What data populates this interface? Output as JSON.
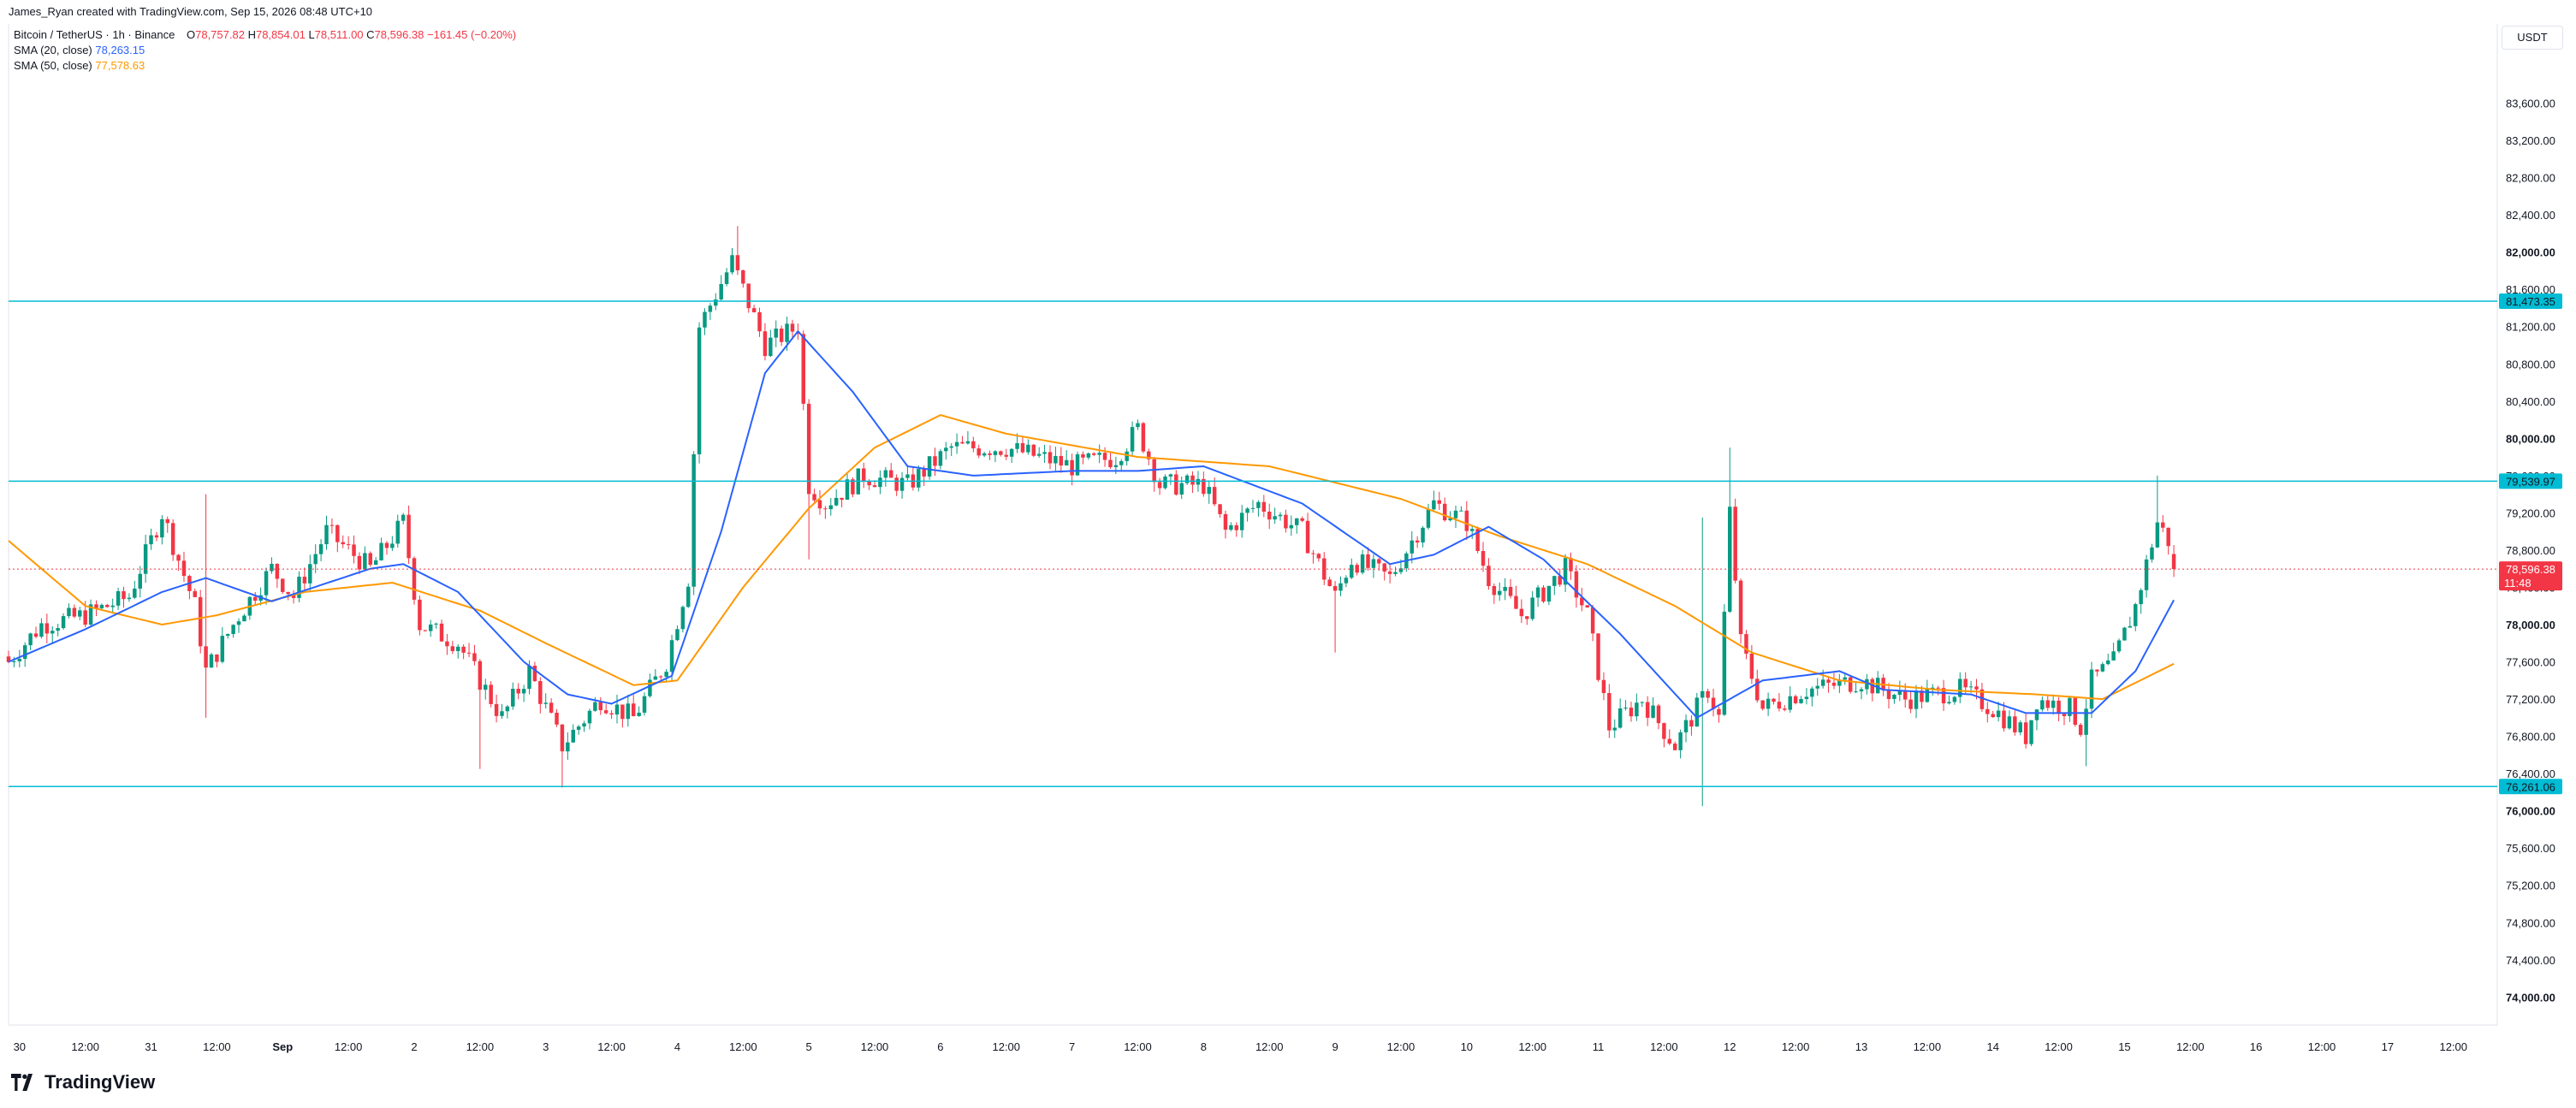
{
  "attribution": "James_Ryan created with TradingView.com, Sep 15, 2026 08:48 UTC+10",
  "legend": {
    "symbol": "Bitcoin / TetherUS · 1h · Binance",
    "o_label": "O",
    "o_value": "78,757.82",
    "h_label": "H",
    "h_value": "78,854.01",
    "l_label": "L",
    "l_value": "78,511.00",
    "c_label": "C",
    "c_value": "78,596.38",
    "change": "−161.45 (−0.20%)",
    "sma20_label": "SMA (20, close)",
    "sma20_value": "78,263.15",
    "sma50_label": "SMA (50, close)",
    "sma50_value": "77,578.63"
  },
  "currency_button": "USDT",
  "branding": "TradingView",
  "chart_data": {
    "type": "candlestick",
    "symbol": "BTCUSDT",
    "interval": "1h",
    "y_range": [
      73700,
      84450
    ],
    "y_ticks": [
      74000,
      74400,
      74800,
      75200,
      75600,
      76000,
      76400,
      76800,
      77200,
      77600,
      78000,
      78400,
      78800,
      79200,
      79600,
      80000,
      80400,
      80800,
      81200,
      81600,
      82000,
      82400,
      82800,
      83200,
      83600
    ],
    "y_tick_labels": [
      "74,000.00",
      "74,400.00",
      "74,800.00",
      "75,200.00",
      "75,600.00",
      "76,000.00",
      "76,400.00",
      "76,800.00",
      "77,200.00",
      "77,600.00",
      "78,000.00",
      "78,400.00",
      "78,800.00",
      "79,200.00",
      "79,600.00",
      "80,000.00",
      "80,400.00",
      "80,800.00",
      "81,200.00",
      "81,600.00",
      "82,000.00",
      "82,400.00",
      "82,800.00",
      "83,200.00",
      "83,600.00"
    ],
    "y_bold_ticks": [
      74000,
      76000,
      78000,
      80000,
      82000
    ],
    "x_range": [
      "2026-08-29T22:00",
      "2026-09-17T20:00"
    ],
    "x_ticks": [
      {
        "label": "30",
        "t": "2026-08-30T00:00",
        "bold": false
      },
      {
        "label": "12:00",
        "t": "2026-08-30T12:00",
        "bold": false
      },
      {
        "label": "31",
        "t": "2026-08-31T00:00",
        "bold": false
      },
      {
        "label": "12:00",
        "t": "2026-08-31T12:00",
        "bold": false
      },
      {
        "label": "Sep",
        "t": "2026-09-01T00:00",
        "bold": true
      },
      {
        "label": "12:00",
        "t": "2026-09-01T12:00",
        "bold": false
      },
      {
        "label": "2",
        "t": "2026-09-02T00:00",
        "bold": false
      },
      {
        "label": "12:00",
        "t": "2026-09-02T12:00",
        "bold": false
      },
      {
        "label": "3",
        "t": "2026-09-03T00:00",
        "bold": false
      },
      {
        "label": "12:00",
        "t": "2026-09-03T12:00",
        "bold": false
      },
      {
        "label": "4",
        "t": "2026-09-04T00:00",
        "bold": false
      },
      {
        "label": "12:00",
        "t": "2026-09-04T12:00",
        "bold": false
      },
      {
        "label": "5",
        "t": "2026-09-05T00:00",
        "bold": false
      },
      {
        "label": "12:00",
        "t": "2026-09-05T12:00",
        "bold": false
      },
      {
        "label": "6",
        "t": "2026-09-06T00:00",
        "bold": false
      },
      {
        "label": "12:00",
        "t": "2026-09-06T12:00",
        "bold": false
      },
      {
        "label": "7",
        "t": "2026-09-07T00:00",
        "bold": false
      },
      {
        "label": "12:00",
        "t": "2026-09-07T12:00",
        "bold": false
      },
      {
        "label": "8",
        "t": "2026-09-08T00:00",
        "bold": false
      },
      {
        "label": "12:00",
        "t": "2026-09-08T12:00",
        "bold": false
      },
      {
        "label": "9",
        "t": "2026-09-09T00:00",
        "bold": false
      },
      {
        "label": "12:00",
        "t": "2026-09-09T12:00",
        "bold": false
      },
      {
        "label": "10",
        "t": "2026-09-10T00:00",
        "bold": false
      },
      {
        "label": "12:00",
        "t": "2026-09-10T12:00",
        "bold": false
      },
      {
        "label": "11",
        "t": "2026-09-11T00:00",
        "bold": false
      },
      {
        "label": "12:00",
        "t": "2026-09-11T12:00",
        "bold": false
      },
      {
        "label": "12",
        "t": "2026-09-12T00:00",
        "bold": false
      },
      {
        "label": "12:00",
        "t": "2026-09-12T12:00",
        "bold": false
      },
      {
        "label": "13",
        "t": "2026-09-13T00:00",
        "bold": false
      },
      {
        "label": "12:00",
        "t": "2026-09-13T12:00",
        "bold": false
      },
      {
        "label": "14",
        "t": "2026-09-14T00:00",
        "bold": false
      },
      {
        "label": "12:00",
        "t": "2026-09-14T12:00",
        "bold": false
      },
      {
        "label": "15",
        "t": "2026-09-15T00:00",
        "bold": false
      },
      {
        "label": "12:00",
        "t": "2026-09-15T12:00",
        "bold": false
      },
      {
        "label": "16",
        "t": "2026-09-16T00:00",
        "bold": false
      },
      {
        "label": "12:00",
        "t": "2026-09-16T12:00",
        "bold": false
      },
      {
        "label": "17",
        "t": "2026-09-17T00:00",
        "bold": false
      },
      {
        "label": "12:00",
        "t": "2026-09-17T12:00",
        "bold": false
      }
    ],
    "series_anchor_time": "2026-08-29T22:00",
    "close_anchors": [
      {
        "t": "2026-08-29T22:00",
        "close": 77600
      },
      {
        "t": "2026-08-30T04:00",
        "close": 78000
      },
      {
        "t": "2026-08-30T12:00",
        "close": 78100
      },
      {
        "t": "2026-08-30T20:00",
        "close": 78300
      },
      {
        "t": "2026-08-31T02:00",
        "close": 79200
      },
      {
        "t": "2026-08-31T08:00",
        "close": 78200
      },
      {
        "t": "2026-08-31T10:00",
        "close": 77500
      },
      {
        "t": "2026-08-31T16:00",
        "close": 78100
      },
      {
        "t": "2026-08-31T22:00",
        "close": 78600
      },
      {
        "t": "2026-09-01T02:00",
        "close": 78300
      },
      {
        "t": "2026-09-01T08:00",
        "close": 79000
      },
      {
        "t": "2026-09-01T16:00",
        "close": 78600
      },
      {
        "t": "2026-09-01T22:00",
        "close": 79100
      },
      {
        "t": "2026-09-02T01:00",
        "close": 78000
      },
      {
        "t": "2026-09-02T08:00",
        "close": 77800
      },
      {
        "t": "2026-09-02T16:00",
        "close": 77000
      },
      {
        "t": "2026-09-02T21:00",
        "close": 77500
      },
      {
        "t": "2026-09-03T03:00",
        "close": 76700
      },
      {
        "t": "2026-09-03T10:00",
        "close": 77200
      },
      {
        "t": "2026-09-03T16:00",
        "close": 77000
      },
      {
        "t": "2026-09-03T22:00",
        "close": 77600
      },
      {
        "t": "2026-09-04T02:00",
        "close": 78500
      },
      {
        "t": "2026-09-04T04:00",
        "close": 81200
      },
      {
        "t": "2026-09-04T10:00",
        "close": 81900
      },
      {
        "t": "2026-09-04T16:00",
        "close": 81000
      },
      {
        "t": "2026-09-04T22:00",
        "close": 81200
      },
      {
        "t": "2026-09-05T00:00",
        "close": 79500
      },
      {
        "t": "2026-09-05T03:00",
        "close": 79300
      },
      {
        "t": "2026-09-05T10:00",
        "close": 79600
      },
      {
        "t": "2026-09-05T18:00",
        "close": 79500
      },
      {
        "t": "2026-09-06T02:00",
        "close": 79900
      },
      {
        "t": "2026-09-06T12:00",
        "close": 79900
      },
      {
        "t": "2026-09-07T00:00",
        "close": 79700
      },
      {
        "t": "2026-09-07T08:00",
        "close": 79800
      },
      {
        "t": "2026-09-07T12:00",
        "close": 80100
      },
      {
        "t": "2026-09-07T16:00",
        "close": 79500
      },
      {
        "t": "2026-09-08T00:00",
        "close": 79500
      },
      {
        "t": "2026-09-08T04:00",
        "close": 79000
      },
      {
        "t": "2026-09-08T10:00",
        "close": 79300
      },
      {
        "t": "2026-09-08T18:00",
        "close": 79000
      },
      {
        "t": "2026-09-09T00:00",
        "close": 78300
      },
      {
        "t": "2026-09-09T03:00",
        "close": 78700
      },
      {
        "t": "2026-09-09T10:00",
        "close": 78500
      },
      {
        "t": "2026-09-09T18:00",
        "close": 79300
      },
      {
        "t": "2026-09-10T00:00",
        "close": 79100
      },
      {
        "t": "2026-09-10T04:00",
        "close": 78500
      },
      {
        "t": "2026-09-10T10:00",
        "close": 78100
      },
      {
        "t": "2026-09-10T18:00",
        "close": 78600
      },
      {
        "t": "2026-09-10T22:00",
        "close": 78100
      },
      {
        "t": "2026-09-11T00:00",
        "close": 77500
      },
      {
        "t": "2026-09-11T02:00",
        "close": 76900
      },
      {
        "t": "2026-09-11T08:00",
        "close": 77200
      },
      {
        "t": "2026-09-11T14:00",
        "close": 76700
      },
      {
        "t": "2026-09-11T20:00",
        "close": 77300
      },
      {
        "t": "2026-09-11T22:00",
        "close": 77000
      },
      {
        "t": "2026-09-12T00:00",
        "close": 79200
      },
      {
        "t": "2026-09-12T02:00",
        "close": 77800
      },
      {
        "t": "2026-09-12T06:00",
        "close": 77100
      },
      {
        "t": "2026-09-12T14:00",
        "close": 77300
      },
      {
        "t": "2026-09-13T00:00",
        "close": 77400
      },
      {
        "t": "2026-09-13T08:00",
        "close": 77200
      },
      {
        "t": "2026-09-13T18:00",
        "close": 77300
      },
      {
        "t": "2026-09-14T00:00",
        "close": 77100
      },
      {
        "t": "2026-09-14T06:00",
        "close": 76800
      },
      {
        "t": "2026-09-14T08:00",
        "close": 77200
      },
      {
        "t": "2026-09-14T14:00",
        "close": 77100
      },
      {
        "t": "2026-09-14T16:00",
        "close": 76900
      },
      {
        "t": "2026-09-14T18:00",
        "close": 77400
      },
      {
        "t": "2026-09-14T22:00",
        "close": 77600
      },
      {
        "t": "2026-09-15T02:00",
        "close": 78200
      },
      {
        "t": "2026-09-15T06:00",
        "close": 79100
      },
      {
        "t": "2026-09-15T08:00",
        "close": 78900
      },
      {
        "t": "2026-09-15T09:00",
        "close": 78600
      }
    ],
    "spikes": [
      {
        "t": "2026-08-31T10:00",
        "high": 79400,
        "low": 77000
      },
      {
        "t": "2026-09-02T12:00",
        "low": 76450
      },
      {
        "t": "2026-09-03T03:00",
        "low": 76250
      },
      {
        "t": "2026-09-04T11:00",
        "high": 82280
      },
      {
        "t": "2026-09-05T00:00",
        "low": 78700
      },
      {
        "t": "2026-09-09T00:00",
        "low": 77700
      },
      {
        "t": "2026-09-11T19:00",
        "high": 79150,
        "low": 76050
      },
      {
        "t": "2026-09-12T00:00",
        "high": 79900
      },
      {
        "t": "2026-09-14T17:00",
        "low": 76480
      },
      {
        "t": "2026-09-15T06:00",
        "high": 79600
      }
    ],
    "sma20_anchors": [
      {
        "t": "2026-08-29T22:00",
        "v": 77600
      },
      {
        "t": "2026-08-30T12:00",
        "v": 77950
      },
      {
        "t": "2026-08-31T02:00",
        "v": 78350
      },
      {
        "t": "2026-08-31T10:00",
        "v": 78500
      },
      {
        "t": "2026-08-31T22:00",
        "v": 78250
      },
      {
        "t": "2026-09-01T16:00",
        "v": 78600
      },
      {
        "t": "2026-09-01T22:00",
        "v": 78650
      },
      {
        "t": "2026-09-02T08:00",
        "v": 78350
      },
      {
        "t": "2026-09-02T20:00",
        "v": 77600
      },
      {
        "t": "2026-09-03T04:00",
        "v": 77250
      },
      {
        "t": "2026-09-03T12:00",
        "v": 77150
      },
      {
        "t": "2026-09-03T23:00",
        "v": 77450
      },
      {
        "t": "2026-09-04T08:00",
        "v": 79000
      },
      {
        "t": "2026-09-04T16:00",
        "v": 80700
      },
      {
        "t": "2026-09-04T22:00",
        "v": 81150
      },
      {
        "t": "2026-09-05T08:00",
        "v": 80500
      },
      {
        "t": "2026-09-05T18:00",
        "v": 79700
      },
      {
        "t": "2026-09-06T06:00",
        "v": 79600
      },
      {
        "t": "2026-09-07T00:00",
        "v": 79650
      },
      {
        "t": "2026-09-07T12:00",
        "v": 79650
      },
      {
        "t": "2026-09-08T00:00",
        "v": 79700
      },
      {
        "t": "2026-09-08T18:00",
        "v": 79300
      },
      {
        "t": "2026-09-09T10:00",
        "v": 78650
      },
      {
        "t": "2026-09-09T18:00",
        "v": 78750
      },
      {
        "t": "2026-09-10T04:00",
        "v": 79050
      },
      {
        "t": "2026-09-10T14:00",
        "v": 78700
      },
      {
        "t": "2026-09-11T04:00",
        "v": 77900
      },
      {
        "t": "2026-09-11T18:00",
        "v": 77000
      },
      {
        "t": "2026-09-12T06:00",
        "v": 77400
      },
      {
        "t": "2026-09-12T20:00",
        "v": 77500
      },
      {
        "t": "2026-09-13T04:00",
        "v": 77300
      },
      {
        "t": "2026-09-13T20:00",
        "v": 77250
      },
      {
        "t": "2026-09-14T06:00",
        "v": 77050
      },
      {
        "t": "2026-09-14T18:00",
        "v": 77050
      },
      {
        "t": "2026-09-15T02:00",
        "v": 77500
      },
      {
        "t": "2026-09-15T09:00",
        "v": 78263
      }
    ],
    "sma50_anchors": [
      {
        "t": "2026-08-29T22:00",
        "v": 78900
      },
      {
        "t": "2026-08-30T12:00",
        "v": 78200
      },
      {
        "t": "2026-08-31T02:00",
        "v": 78000
      },
      {
        "t": "2026-08-31T12:00",
        "v": 78100
      },
      {
        "t": "2026-09-01T04:00",
        "v": 78350
      },
      {
        "t": "2026-09-01T20:00",
        "v": 78450
      },
      {
        "t": "2026-09-02T12:00",
        "v": 78150
      },
      {
        "t": "2026-09-03T00:00",
        "v": 77800
      },
      {
        "t": "2026-09-03T16:00",
        "v": 77350
      },
      {
        "t": "2026-09-04T00:00",
        "v": 77400
      },
      {
        "t": "2026-09-04T12:00",
        "v": 78400
      },
      {
        "t": "2026-09-05T00:00",
        "v": 79250
      },
      {
        "t": "2026-09-05T12:00",
        "v": 79900
      },
      {
        "t": "2026-09-06T00:00",
        "v": 80250
      },
      {
        "t": "2026-09-06T12:00",
        "v": 80050
      },
      {
        "t": "2026-09-07T12:00",
        "v": 79800
      },
      {
        "t": "2026-09-08T12:00",
        "v": 79700
      },
      {
        "t": "2026-09-09T12:00",
        "v": 79350
      },
      {
        "t": "2026-09-10T06:00",
        "v": 78950
      },
      {
        "t": "2026-09-10T22:00",
        "v": 78650
      },
      {
        "t": "2026-09-11T14:00",
        "v": 78200
      },
      {
        "t": "2026-09-12T04:00",
        "v": 77700
      },
      {
        "t": "2026-09-12T20:00",
        "v": 77400
      },
      {
        "t": "2026-09-13T14:00",
        "v": 77300
      },
      {
        "t": "2026-09-14T08:00",
        "v": 77250
      },
      {
        "t": "2026-09-14T20:00",
        "v": 77200
      },
      {
        "t": "2026-09-15T09:00",
        "v": 77579
      }
    ],
    "horizontal_lines": [
      {
        "price": 81473.35,
        "label": "81,473.35",
        "color": "#00bcd4"
      },
      {
        "price": 79539.97,
        "label": "79,539.97",
        "color": "#00bcd4"
      },
      {
        "price": 76261.06,
        "label": "76,261.06",
        "color": "#00bcd4"
      }
    ],
    "last_price": {
      "price": 78596.38,
      "label": "78,596.38",
      "countdown": "11:48",
      "color": "#f23645"
    },
    "colors": {
      "up": "#089981",
      "down": "#f23645",
      "sma20": "#2962ff",
      "sma50": "#ff9800",
      "level": "#00bcd4"
    }
  }
}
